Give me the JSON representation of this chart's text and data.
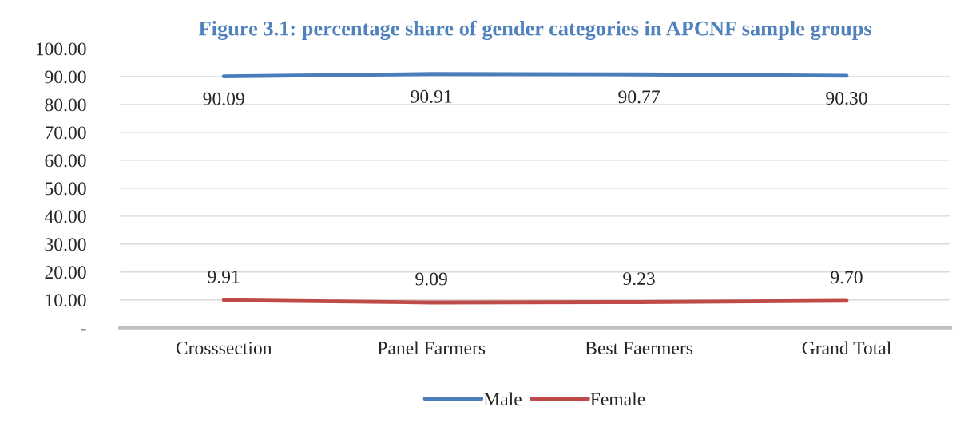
{
  "chart_data": {
    "type": "line",
    "title": "Figure 3.1: percentage share of gender categories in APCNF sample groups",
    "categories": [
      "Crosssection",
      "Panel Farmers",
      "Best Faermers",
      "Grand Total"
    ],
    "series": [
      {
        "name": "Male",
        "color": "#4a7ebb",
        "values": [
          90.09,
          90.91,
          90.77,
          90.3
        ],
        "value_labels": [
          "90.09",
          "90.91",
          "90.77",
          "90.30"
        ]
      },
      {
        "name": "Female",
        "color": "#be4b48",
        "values": [
          9.91,
          9.09,
          9.23,
          9.7
        ],
        "value_labels": [
          "9.91",
          "9.09",
          "9.23",
          "9.70"
        ]
      }
    ],
    "ylim": [
      0,
      100
    ],
    "yticks": [
      {
        "value": 0,
        "label": "-"
      },
      {
        "value": 10,
        "label": "10.00"
      },
      {
        "value": 20,
        "label": "20.00"
      },
      {
        "value": 30,
        "label": "30.00"
      },
      {
        "value": 40,
        "label": "40.00"
      },
      {
        "value": 50,
        "label": "50.00"
      },
      {
        "value": 60,
        "label": "60.00"
      },
      {
        "value": 70,
        "label": "70.00"
      },
      {
        "value": 80,
        "label": "80.00"
      },
      {
        "value": 90,
        "label": "90.00"
      },
      {
        "value": 100,
        "label": "100.00"
      }
    ],
    "grid": "y",
    "legend": "bottom",
    "marker": "none",
    "line_style": "solid"
  }
}
